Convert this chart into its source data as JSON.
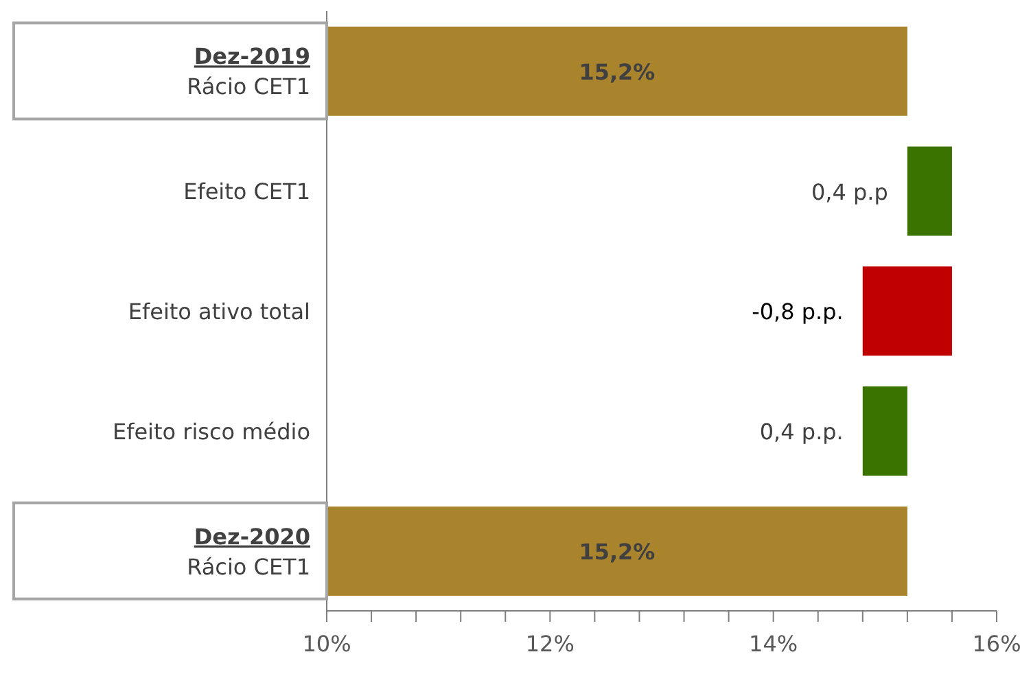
{
  "chart_data": {
    "type": "bar",
    "orientation": "horizontal",
    "categories": [
      "Dez-2019\nRácio CET1",
      "Efeito CET1",
      "Efeito ativo total",
      "Efeito risco médio",
      "Dez-2020\nRácio CET1"
    ],
    "values": [
      15.2,
      0.4,
      -0.8,
      0.4,
      15.2
    ],
    "base": [
      null,
      15.2,
      15.6,
      14.8,
      null
    ],
    "colors": [
      "#a9842d",
      "#3a7300",
      "#c00000",
      "#3a7300",
      "#a9842d"
    ],
    "value_labels": [
      "15,2%",
      "0,4 p.p",
      "-0,8 p.p.",
      "0,4 p.p.",
      "15,2%"
    ],
    "xlim": [
      10,
      16
    ],
    "xticks": [
      {
        "value": 10,
        "label": "10%"
      },
      {
        "value": 10.4,
        "label": null
      },
      {
        "value": 10.8,
        "label": null
      },
      {
        "value": 11.2,
        "label": null
      },
      {
        "value": 11.6,
        "label": null
      },
      {
        "value": 12,
        "label": "12%"
      },
      {
        "value": 12.4,
        "label": null
      },
      {
        "value": 12.8,
        "label": null
      },
      {
        "value": 13.2,
        "label": null
      },
      {
        "value": 13.6,
        "label": null
      },
      {
        "value": 14,
        "label": "14%"
      },
      {
        "value": 14.4,
        "label": null
      },
      {
        "value": 14.8,
        "label": null
      },
      {
        "value": 15.2,
        "label": null
      },
      {
        "value": 15.6,
        "label": null
      },
      {
        "value": 16,
        "label": "16%"
      }
    ],
    "grid": false,
    "legend": false
  }
}
